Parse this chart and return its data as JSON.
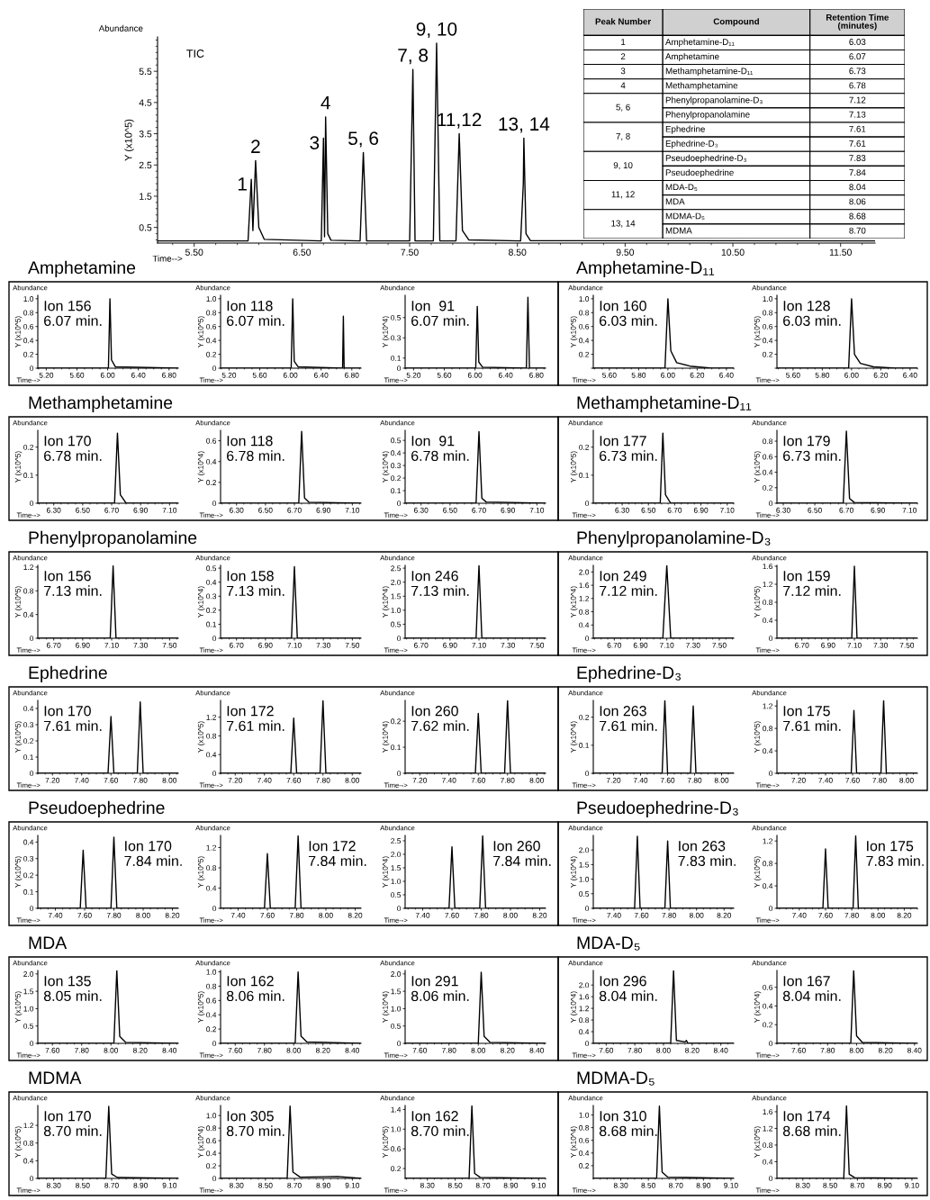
{
  "chart_data": [
    {
      "type": "line",
      "title": "TIC",
      "ylabel": "Y (x10^5)",
      "annotations": [
        "Abundance",
        "Time-->",
        {
          "text": "1",
          "x": 6.03,
          "y": 2.04
        },
        {
          "text": "2",
          "x": 6.07,
          "y": 2.64
        },
        {
          "text": "3",
          "x": 6.7,
          "y": 3.36
        },
        {
          "text": "4",
          "x": 6.72,
          "y": 4.04
        },
        {
          "text": "5, 6",
          "x": 7.07,
          "y": 2.9
        },
        {
          "text": "7, 8",
          "x": 7.53,
          "y": 5.56
        },
        {
          "text": "9, 10",
          "x": 7.75,
          "y": 6.4
        },
        {
          "text": "11,12",
          "x": 7.96,
          "y": 3.5
        },
        {
          "text": "13, 14",
          "x": 8.56,
          "y": 3.36
        }
      ],
      "xlim": [
        5.16,
        11.82
      ],
      "xticks": [
        {
          "value": 5.5,
          "label": "5.50"
        },
        {
          "value": 6.5,
          "label": "6.50"
        },
        {
          "value": 7.5,
          "label": "7.50"
        },
        {
          "value": 8.5,
          "label": "8.50"
        },
        {
          "value": 9.5,
          "label": "9.50"
        },
        {
          "value": 10.5,
          "label": "10.50"
        },
        {
          "value": 11.5,
          "label": "11.50"
        }
      ],
      "ylim": [
        0,
        6.6
      ],
      "yticks": [
        0.5,
        1.5,
        2.5,
        3.5,
        4.5,
        5.5
      ],
      "x": [
        5.16,
        6.0,
        6.03,
        6.045,
        6.07,
        6.1,
        6.15,
        6.68,
        6.7,
        6.71,
        6.72,
        6.74,
        6.77,
        7.04,
        7.07,
        7.1,
        7.5,
        7.53,
        7.55,
        7.72,
        7.75,
        7.78,
        7.93,
        7.96,
        7.99,
        8.05,
        8.53,
        8.555,
        8.56,
        8.58,
        8.62,
        11.82
      ],
      "values": [
        0.07,
        0.07,
        2.04,
        0.4,
        2.64,
        0.5,
        0.12,
        0.07,
        3.36,
        0.2,
        4.04,
        0.3,
        0.09,
        0.07,
        2.9,
        0.07,
        0.07,
        5.56,
        0.07,
        0.07,
        6.4,
        0.07,
        0.07,
        3.5,
        0.4,
        0.1,
        0.07,
        1.9,
        3.36,
        0.3,
        0.08,
        0.07
      ]
    },
    {
      "type": "other",
      "categories": [
        "Peak Number",
        "Compound",
        "Retention Time\n(minutes)"
      ],
      "cell_labels": [
        [
          "1",
          "Amphetamine-D₁₁",
          "6.03"
        ],
        [
          "2",
          "Amphetamine",
          "6.07"
        ],
        [
          "3",
          "Methamphetamine-D₁₁",
          "6.73"
        ],
        [
          "4",
          "Methamphetamine",
          "6.78"
        ],
        [
          "5, 6",
          "Phenylpropanolamine-D₃",
          "7.12"
        ],
        [
          null,
          "Phenylpropanolamine",
          "7.13"
        ],
        [
          "7, 8",
          "Ephedrine",
          "7.61"
        ],
        [
          null,
          "Ephedrine-D₃",
          "7.61"
        ],
        [
          "9, 10",
          "Pseudoephedrine-D₃",
          "7.83"
        ],
        [
          null,
          "Pseudoephedrine",
          "7.84"
        ],
        [
          "11, 12",
          "MDA-D₅",
          "8.04"
        ],
        [
          null,
          "MDA",
          "8.06"
        ],
        [
          "13, 14",
          "MDMA-D₅",
          "8.68"
        ],
        [
          null,
          "MDMA",
          "8.70"
        ]
      ]
    },
    {
      "type": "line",
      "subtitle": "Amphetamine",
      "ylabel": "Y (x10^5)",
      "annotations": [
        "Abundance",
        "Time-->",
        "Ion 156\n6.07 min."
      ],
      "xlim": [
        5.09,
        6.92
      ],
      "xticks": [
        {
          "value": 5.2,
          "label": "5.20"
        },
        {
          "value": 5.6,
          "label": "5.60"
        },
        {
          "value": 6,
          "label": "6.00"
        },
        {
          "value": 6.4,
          "label": "6.40"
        },
        {
          "value": 6.8,
          "label": "6.80"
        }
      ],
      "ylim": [
        0,
        1.05
      ],
      "yticks": [
        0,
        0.2,
        0.4,
        0.6,
        0.8,
        {
          "value": 1,
          "label": "1.0"
        }
      ],
      "x": [
        5.09,
        6.01,
        6.03,
        6.05,
        6.1,
        6.92
      ],
      "values": [
        0,
        0,
        1.0,
        0.12,
        0.02,
        0
      ]
    },
    {
      "type": "line",
      "ylabel": "Y (x10^5)",
      "annotations": [
        "Abundance",
        "Time-->",
        "Ion 118\n6.07 min."
      ],
      "xlim": [
        5.09,
        6.92
      ],
      "xticks": [
        {
          "value": 5.2,
          "label": "5.20"
        },
        {
          "value": 5.6,
          "label": "5.60"
        },
        {
          "value": 6,
          "label": "6.00"
        },
        {
          "value": 6.4,
          "label": "6.40"
        },
        {
          "value": 6.8,
          "label": "6.80"
        }
      ],
      "ylim": [
        0,
        1.05
      ],
      "yticks": [
        0,
        0.2,
        0.4,
        0.6,
        0.8,
        {
          "value": 1,
          "label": "1.0"
        }
      ],
      "x": [
        5.09,
        6.01,
        6.03,
        6.05,
        6.1,
        6.68,
        6.69,
        6.7,
        6.92
      ],
      "values": [
        0,
        0,
        1.0,
        0.1,
        0.02,
        0,
        0.75,
        0,
        0
      ]
    },
    {
      "type": "line",
      "ylabel": "Y (x10^4)",
      "annotations": [
        "Abundance",
        "Time-->",
        "Ion  91\n6.07 min."
      ],
      "xlim": [
        5.09,
        6.92
      ],
      "xticks": [
        {
          "value": 5.2,
          "label": "5.20"
        },
        {
          "value": 5.6,
          "label": "5.60"
        },
        {
          "value": 6,
          "label": "6.00"
        },
        {
          "value": 6.4,
          "label": "6.40"
        },
        {
          "value": 6.8,
          "label": "6.80"
        }
      ],
      "ylim": [
        0,
        0.72
      ],
      "yticks": [
        0,
        0.1,
        0.3,
        0.5
      ],
      "x": [
        5.09,
        6.01,
        6.03,
        6.05,
        6.1,
        6.67,
        6.69,
        6.71,
        6.92
      ],
      "values": [
        0,
        0,
        0.61,
        0.06,
        0.01,
        0,
        0.7,
        0,
        0
      ]
    },
    {
      "type": "line",
      "subtitle": "Amphetamine-D₁₁",
      "ylabel": "Y (x10^5)",
      "annotations": [
        "Abundance",
        "Time-->",
        "Ion 160\n6.03 min."
      ],
      "xlim": [
        5.49,
        6.45
      ],
      "xticks": [
        {
          "value": 5.6,
          "label": "5.60"
        },
        {
          "value": 5.8,
          "label": "5.80"
        },
        {
          "value": 6,
          "label": "6.00"
        },
        {
          "value": 6.2,
          "label": "6.20"
        },
        {
          "value": 6.4,
          "label": "6.40"
        }
      ],
      "ylim": [
        0,
        1.05
      ],
      "yticks": [
        {
          "value": 0,
          "label": null
        },
        0.2,
        0.4,
        0.6,
        0.8,
        {
          "value": 1,
          "label": "1.0"
        }
      ],
      "x": [
        5.49,
        5.98,
        6.0,
        6.02,
        6.06,
        6.15,
        6.3,
        6.45
      ],
      "values": [
        0,
        0,
        1.0,
        0.25,
        0.08,
        0.03,
        0,
        0
      ]
    },
    {
      "type": "line",
      "ylabel": "Y (x10^5)",
      "annotations": [
        "Abundance",
        "Time-->",
        "Ion 128\n6.03 min."
      ],
      "xlim": [
        5.49,
        6.45
      ],
      "xticks": [
        {
          "value": 5.6,
          "label": "5.60"
        },
        {
          "value": 5.8,
          "label": "5.80"
        },
        {
          "value": 6,
          "label": "6.00"
        },
        {
          "value": 6.2,
          "label": "6.20"
        },
        {
          "value": 6.4,
          "label": "6.40"
        }
      ],
      "ylim": [
        0,
        1.05
      ],
      "yticks": [
        {
          "value": 0,
          "label": null
        },
        0.2,
        0.4,
        0.6,
        0.8,
        {
          "value": 1,
          "label": "1.0"
        }
      ],
      "x": [
        5.49,
        5.98,
        6.0,
        6.02,
        6.06,
        6.15,
        6.3,
        6.45
      ],
      "values": [
        0,
        0,
        1.0,
        0.2,
        0.07,
        0.02,
        0,
        0
      ]
    },
    {
      "type": "line",
      "subtitle": "Methamphetamine",
      "ylabel": "Y (x10^5)",
      "annotations": [
        "Abundance",
        "Time-->",
        "Ion 170\n6.78 min."
      ],
      "xlim": [
        6.19,
        7.16
      ],
      "xticks": [
        {
          "value": 6.3,
          "label": "6.30"
        },
        {
          "value": 6.5,
          "label": "6.50"
        },
        {
          "value": 6.7,
          "label": "6.70"
        },
        {
          "value": 6.9,
          "label": "6.90"
        },
        {
          "value": 7.1,
          "label": "7.10"
        }
      ],
      "ylim": [
        0,
        0.26
      ],
      "yticks": [
        0,
        0.1,
        0.2
      ],
      "x": [
        6.19,
        6.72,
        6.74,
        6.76,
        6.8,
        7.16
      ],
      "values": [
        0,
        0,
        0.25,
        0.03,
        0,
        0
      ]
    },
    {
      "type": "line",
      "ylabel": "Y (x10^4)",
      "annotations": [
        "Abundance",
        "Time-->",
        "Ion 118\n6.78 min."
      ],
      "xlim": [
        6.19,
        7.16
      ],
      "xticks": [
        {
          "value": 6.3,
          "label": "6.30"
        },
        {
          "value": 6.5,
          "label": "6.50"
        },
        {
          "value": 6.7,
          "label": "6.70"
        },
        {
          "value": 6.9,
          "label": "6.90"
        },
        {
          "value": 7.1,
          "label": "7.10"
        }
      ],
      "ylim": [
        0,
        0.7
      ],
      "yticks": [
        0,
        0.2,
        0.4,
        0.6
      ],
      "x": [
        6.19,
        6.73,
        6.75,
        6.77,
        6.8,
        7.16
      ],
      "values": [
        0,
        0,
        0.69,
        0.05,
        0.01,
        0
      ]
    },
    {
      "type": "line",
      "ylabel": "Y (x10^4)",
      "annotations": [
        "Abundance",
        "Time-->",
        "Ion  91\n6.78 min."
      ],
      "xlim": [
        6.19,
        7.16
      ],
      "xticks": [
        {
          "value": 6.3,
          "label": "6.30"
        },
        {
          "value": 6.5,
          "label": "6.50"
        },
        {
          "value": 6.7,
          "label": "6.70"
        },
        {
          "value": 6.9,
          "label": "6.90"
        },
        {
          "value": 7.1,
          "label": "7.10"
        }
      ],
      "ylim": [
        0,
        0.58
      ],
      "yticks": [
        0,
        0.1,
        0.2,
        0.3,
        0.4,
        0.5
      ],
      "x": [
        6.19,
        6.68,
        6.7,
        6.72,
        6.75,
        7.16
      ],
      "values": [
        0,
        0,
        0.57,
        0.04,
        0.01,
        0
      ]
    },
    {
      "type": "line",
      "subtitle": "Methamphetamine-D₁₁",
      "ylabel": "Y (x10^5)",
      "annotations": [
        "Abundance",
        "Time-->",
        "Ion 177\n6.73 min."
      ],
      "xlim": [
        6.08,
        7.15
      ],
      "xticks": [
        {
          "value": 6.3,
          "label": "6.30"
        },
        {
          "value": 6.5,
          "label": "6.50"
        },
        {
          "value": 6.7,
          "label": "6.70"
        },
        {
          "value": 6.9,
          "label": "6.90"
        },
        {
          "value": 7.1,
          "label": "7.10"
        }
      ],
      "ylim": [
        0,
        0.26
      ],
      "yticks": [
        0,
        0.1,
        0.2
      ],
      "x": [
        6.08,
        6.59,
        6.61,
        6.63,
        6.67,
        7.15
      ],
      "values": [
        0,
        0,
        0.25,
        0.03,
        0,
        0
      ]
    },
    {
      "type": "line",
      "ylabel": "Y (x10^5)",
      "annotations": [
        "Abundance",
        "Time-->",
        "Ion 179\n6.73 min."
      ],
      "xlim": [
        6.26,
        7.15
      ],
      "xticks": [
        {
          "value": 6.3,
          "label": "6.30"
        },
        {
          "value": 6.5,
          "label": "6.50"
        },
        {
          "value": 6.7,
          "label": "6.70"
        },
        {
          "value": 6.9,
          "label": "6.90"
        },
        {
          "value": 7.1,
          "label": "7.10"
        }
      ],
      "ylim": [
        0,
        0.94
      ],
      "yticks": [
        0,
        0.2,
        0.4,
        0.6,
        0.8
      ],
      "x": [
        6.26,
        6.68,
        6.7,
        6.72,
        6.75,
        7.15
      ],
      "values": [
        0,
        0,
        0.93,
        0.06,
        0.01,
        0
      ]
    },
    {
      "type": "line",
      "subtitle": "Phenylpropanolamine",
      "ylabel": "Y (x10^5)",
      "annotations": [
        "Abundance",
        "Time-->",
        "Ion 156\n7.13 min."
      ],
      "xlim": [
        6.59,
        7.56
      ],
      "xticks": [
        {
          "value": 6.7,
          "label": "6.70"
        },
        {
          "value": 6.9,
          "label": "6.90"
        },
        {
          "value": 7.1,
          "label": "7.10"
        },
        {
          "value": 7.3,
          "label": "7.30"
        },
        {
          "value": 7.5,
          "label": "7.50"
        }
      ],
      "ylim": [
        0,
        1.23
      ],
      "yticks": [
        0,
        0.4,
        0.8,
        1.2
      ],
      "x": [
        6.59,
        7.09,
        7.11,
        7.13,
        7.56
      ],
      "values": [
        0,
        0,
        1.22,
        0,
        0
      ]
    },
    {
      "type": "line",
      "ylabel": "Y (x10^4)",
      "annotations": [
        "Abundance",
        "Time-->",
        "Ion 158\n7.13 min."
      ],
      "xlim": [
        6.59,
        7.56
      ],
      "xticks": [
        {
          "value": 6.7,
          "label": "6.70"
        },
        {
          "value": 6.9,
          "label": "6.90"
        },
        {
          "value": 7.1,
          "label": "7.10"
        },
        {
          "value": 7.3,
          "label": "7.30"
        },
        {
          "value": 7.5,
          "label": "7.50"
        }
      ],
      "ylim": [
        0,
        0.52
      ],
      "yticks": [
        0,
        0.1,
        0.2,
        0.3,
        0.4,
        0.5
      ],
      "x": [
        6.59,
        7.08,
        7.1,
        7.12,
        7.56
      ],
      "values": [
        0,
        0,
        0.51,
        0,
        0
      ]
    },
    {
      "type": "line",
      "ylabel": "Y (x10^4)",
      "annotations": [
        "Abundance",
        "Time-->",
        "Ion 246\n7.13 min."
      ],
      "xlim": [
        6.59,
        7.56
      ],
      "xticks": [
        {
          "value": 6.7,
          "label": "6.70"
        },
        {
          "value": 6.9,
          "label": "6.90"
        },
        {
          "value": 7.1,
          "label": "7.10"
        },
        {
          "value": 7.3,
          "label": "7.30"
        },
        {
          "value": 7.5,
          "label": "7.50"
        }
      ],
      "ylim": [
        0,
        2.6
      ],
      "yticks": [
        0,
        0.5,
        {
          "value": 1,
          "label": "1.0"
        },
        1.5,
        {
          "value": 2,
          "label": "2.0"
        },
        2.5
      ],
      "x": [
        6.59,
        7.08,
        7.1,
        7.12,
        7.56
      ],
      "values": [
        0,
        0,
        2.6,
        0,
        0
      ]
    },
    {
      "type": "line",
      "subtitle": "Phenylpropanolamine-D₃",
      "ylabel": "Y (x10^4)",
      "annotations": [
        "Abundance",
        "Time-->",
        "Ion 249\n7.12 min."
      ],
      "xlim": [
        6.54,
        7.61
      ],
      "xticks": [
        {
          "value": 6.7,
          "label": "6.70"
        },
        {
          "value": 6.9,
          "label": "6.90"
        },
        {
          "value": 7.1,
          "label": "7.10"
        },
        {
          "value": 7.3,
          "label": "7.30"
        },
        {
          "value": 7.5,
          "label": "7.50"
        }
      ],
      "ylim": [
        0,
        2.2
      ],
      "yticks": [
        0,
        0.4,
        0.8,
        1.2,
        1.6,
        {
          "value": 2,
          "label": "2.0"
        }
      ],
      "x": [
        6.54,
        7.07,
        7.1,
        7.13,
        7.61
      ],
      "values": [
        0,
        0,
        2.2,
        0,
        0
      ]
    },
    {
      "type": "line",
      "ylabel": "Y (x10^5)",
      "annotations": [
        "Abundance",
        "Time-->",
        "Ion 159\n7.12 min."
      ],
      "xlim": [
        6.51,
        7.58
      ],
      "xticks": [
        {
          "value": 6.7,
          "label": "6.70"
        },
        {
          "value": 6.9,
          "label": "6.90"
        },
        {
          "value": 7.1,
          "label": "7.10"
        },
        {
          "value": 7.3,
          "label": "7.30"
        },
        {
          "value": 7.5,
          "label": "7.50"
        }
      ],
      "ylim": [
        0,
        1.62
      ],
      "yticks": [
        0,
        0.4,
        0.8,
        1.2,
        1.6
      ],
      "x": [
        6.51,
        7.08,
        7.1,
        7.12,
        7.58
      ],
      "values": [
        0,
        0,
        1.6,
        0,
        0
      ]
    },
    {
      "type": "line",
      "subtitle": "Ephedrine",
      "ylabel": "Y (x10^5)",
      "annotations": [
        "Abundance",
        "Time-->",
        "Ion 170\n7.61 min."
      ],
      "xlim": [
        7.1,
        8.06
      ],
      "xticks": [
        {
          "value": 7.2,
          "label": "7.20"
        },
        {
          "value": 7.4,
          "label": "7.40"
        },
        {
          "value": 7.6,
          "label": "7.60"
        },
        {
          "value": 7.8,
          "label": "7.80"
        },
        {
          "value": 8,
          "label": "8.00"
        }
      ],
      "ylim": [
        0,
        0.45
      ],
      "yticks": [
        0,
        0.1,
        0.2,
        0.3,
        0.4
      ],
      "x": [
        7.1,
        7.58,
        7.6,
        7.62,
        7.78,
        7.8,
        7.82,
        8.06
      ],
      "values": [
        0,
        0,
        0.35,
        0,
        0,
        0.44,
        0,
        0
      ]
    },
    {
      "type": "line",
      "ylabel": "Y (x10^5)",
      "annotations": [
        "Abundance",
        "Time-->",
        "Ion 172\n7.61 min."
      ],
      "xlim": [
        7.1,
        8.06
      ],
      "xticks": [
        {
          "value": 7.2,
          "label": "7.20"
        },
        {
          "value": 7.4,
          "label": "7.40"
        },
        {
          "value": 7.6,
          "label": "7.60"
        },
        {
          "value": 7.8,
          "label": "7.80"
        },
        {
          "value": 8,
          "label": "8.00"
        }
      ],
      "ylim": [
        0,
        1.56
      ],
      "yticks": [
        0,
        0.4,
        0.8,
        1.2
      ],
      "x": [
        7.1,
        7.58,
        7.6,
        7.62,
        7.78,
        7.8,
        7.82,
        8.06
      ],
      "values": [
        0,
        0,
        1.18,
        0,
        0,
        1.55,
        0,
        0
      ]
    },
    {
      "type": "line",
      "ylabel": "Y (x10^4)",
      "annotations": [
        "Abundance",
        "Time-->",
        "Ion 260\n7.62 min."
      ],
      "xlim": [
        7.1,
        8.06
      ],
      "xticks": [
        {
          "value": 7.2,
          "label": "7.20"
        },
        {
          "value": 7.4,
          "label": "7.40"
        },
        {
          "value": 7.6,
          "label": "7.60"
        },
        {
          "value": 7.8,
          "label": "7.80"
        },
        {
          "value": 8,
          "label": "8.00"
        }
      ],
      "ylim": [
        0,
        0.28
      ],
      "yticks": [
        0,
        0.1,
        0.2
      ],
      "x": [
        7.1,
        7.58,
        7.6,
        7.62,
        7.78,
        7.8,
        7.82,
        8.06
      ],
      "values": [
        0,
        0,
        0.23,
        0,
        0,
        0.28,
        0,
        0
      ]
    },
    {
      "type": "line",
      "subtitle": "Ephedrine-D₃",
      "ylabel": "Y (x10^4)",
      "annotations": [
        "Abundance",
        "Time-->",
        "Ion 263\n7.61 min."
      ],
      "xlim": [
        7.05,
        8.09
      ],
      "xticks": [
        {
          "value": 7.2,
          "label": "7.20"
        },
        {
          "value": 7.4,
          "label": "7.40"
        },
        {
          "value": 7.6,
          "label": "7.60"
        },
        {
          "value": 7.8,
          "label": "7.80"
        },
        {
          "value": 8,
          "label": "8.00"
        }
      ],
      "ylim": [
        0,
        0.26
      ],
      "yticks": [
        0,
        0.1,
        0.2
      ],
      "x": [
        7.05,
        7.56,
        7.58,
        7.6,
        7.77,
        7.79,
        7.81,
        8.09
      ],
      "values": [
        0,
        0,
        0.26,
        0,
        0,
        0.24,
        0,
        0
      ]
    },
    {
      "type": "line",
      "ylabel": "Y (x10^5)",
      "annotations": [
        "Abundance",
        "Time-->",
        "Ion 175\n7.61 min."
      ],
      "xlim": [
        7.04,
        8.08
      ],
      "xticks": [
        {
          "value": 7.2,
          "label": "7.20"
        },
        {
          "value": 7.4,
          "label": "7.40"
        },
        {
          "value": 7.6,
          "label": "7.60"
        },
        {
          "value": 7.8,
          "label": "7.80"
        },
        {
          "value": 8,
          "label": "8.00"
        }
      ],
      "ylim": [
        0,
        1.3
      ],
      "yticks": [
        0,
        0.4,
        0.8,
        1.2
      ],
      "x": [
        7.04,
        7.59,
        7.61,
        7.63,
        7.81,
        7.83,
        7.85,
        8.08
      ],
      "values": [
        0,
        0,
        1.12,
        0,
        0,
        1.3,
        0,
        0
      ]
    },
    {
      "type": "line",
      "subtitle": "Pseudoephedrine",
      "ylabel": "Y (x10^5)",
      "annotations": [
        "Abundance",
        "Time-->",
        "Ion 170\n7.84 min."
      ],
      "xlim": [
        7.28,
        8.24
      ],
      "xticks": [
        {
          "value": 7.4,
          "label": "7.40"
        },
        {
          "value": 7.6,
          "label": "7.60"
        },
        {
          "value": 7.8,
          "label": "7.80"
        },
        {
          "value": 8,
          "label": "8.00"
        },
        {
          "value": 8.2,
          "label": "8.20"
        }
      ],
      "ylim": [
        0,
        0.44
      ],
      "yticks": [
        0,
        0.1,
        0.2,
        0.3,
        0.4
      ],
      "x": [
        7.28,
        7.57,
        7.59,
        7.61,
        7.78,
        7.8,
        7.82,
        8.24
      ],
      "values": [
        0,
        0,
        0.35,
        0,
        0,
        0.43,
        0,
        0
      ]
    },
    {
      "type": "line",
      "ylabel": "Y (x10^5)",
      "annotations": [
        "Abundance",
        "Time-->",
        "Ion 172\n7.84 min."
      ],
      "xlim": [
        7.28,
        8.24
      ],
      "xticks": [
        {
          "value": 7.4,
          "label": "7.40"
        },
        {
          "value": 7.6,
          "label": "7.60"
        },
        {
          "value": 7.8,
          "label": "7.80"
        },
        {
          "value": 8,
          "label": "8.00"
        },
        {
          "value": 8.2,
          "label": "8.20"
        }
      ],
      "ylim": [
        0,
        1.44
      ],
      "yticks": [
        0,
        0.4,
        0.8,
        1.2
      ],
      "x": [
        7.28,
        7.58,
        7.6,
        7.62,
        7.79,
        7.81,
        7.83,
        8.24
      ],
      "values": [
        0,
        0,
        1.08,
        0,
        0,
        1.43,
        0,
        0
      ]
    },
    {
      "type": "line",
      "ylabel": "Y (x10^4)",
      "annotations": [
        "Abundance",
        "Time-->",
        "Ion 260\n7.84 min."
      ],
      "xlim": [
        7.28,
        8.24
      ],
      "xticks": [
        {
          "value": 7.4,
          "label": "7.40"
        },
        {
          "value": 7.6,
          "label": "7.60"
        },
        {
          "value": 7.8,
          "label": "7.80"
        },
        {
          "value": 8,
          "label": "8.00"
        },
        {
          "value": 8.2,
          "label": "8.20"
        }
      ],
      "ylim": [
        0,
        2.7
      ],
      "yticks": [
        0,
        0.5,
        {
          "value": 1,
          "label": "1.0"
        },
        1.5,
        {
          "value": 2,
          "label": "2.0"
        },
        2.5
      ],
      "x": [
        7.28,
        7.58,
        7.6,
        7.62,
        7.79,
        7.81,
        7.83,
        8.24
      ],
      "values": [
        0,
        0,
        2.28,
        0,
        0,
        2.68,
        0,
        0
      ]
    },
    {
      "type": "line",
      "subtitle": "Pseudoephedrine-D₃",
      "ylabel": "Y (x10^4)",
      "annotations": [
        "Abundance",
        "Time-->",
        "Ion 263\n7.83 min."
      ],
      "xlim": [
        7.25,
        8.27
      ],
      "xticks": [
        {
          "value": 7.4,
          "label": "7.40"
        },
        {
          "value": 7.6,
          "label": "7.60"
        },
        {
          "value": 7.8,
          "label": "7.80"
        },
        {
          "value": 8,
          "label": "8.00"
        },
        {
          "value": 8.2,
          "label": "8.20"
        }
      ],
      "ylim": [
        0,
        2.5
      ],
      "yticks": [
        0,
        0.5,
        {
          "value": 1,
          "label": "1.0"
        },
        1.5,
        {
          "value": 2,
          "label": "2.0"
        }
      ],
      "x": [
        7.25,
        7.55,
        7.57,
        7.59,
        7.77,
        7.79,
        7.81,
        8.27
      ],
      "values": [
        0,
        0,
        2.47,
        0,
        0,
        2.31,
        0,
        0
      ]
    },
    {
      "type": "line",
      "ylabel": "Y (x10^5)",
      "annotations": [
        "Abundance",
        "Time-->",
        "Ion 175\n7.83 min."
      ],
      "xlim": [
        7.23,
        8.3
      ],
      "xticks": [
        {
          "value": 7.4,
          "label": "7.40"
        },
        {
          "value": 7.6,
          "label": "7.60"
        },
        {
          "value": 7.8,
          "label": "7.80"
        },
        {
          "value": 8,
          "label": "8.00"
        },
        {
          "value": 8.2,
          "label": "8.20"
        }
      ],
      "ylim": [
        0,
        1.3
      ],
      "yticks": [
        0,
        0.4,
        0.8,
        1.2
      ],
      "x": [
        7.23,
        7.58,
        7.6,
        7.62,
        7.81,
        7.83,
        7.85,
        8.3
      ],
      "values": [
        0,
        0,
        1.06,
        0,
        0,
        1.29,
        0,
        0
      ]
    },
    {
      "type": "line",
      "subtitle": "MDA",
      "ylabel": "Y (x10^5)",
      "annotations": [
        "Abundance",
        "Time-->",
        "Ion 135\n8.05 min."
      ],
      "xlim": [
        7.5,
        8.46
      ],
      "xticks": [
        {
          "value": 7.6,
          "label": "7.60"
        },
        {
          "value": 7.8,
          "label": "7.80"
        },
        {
          "value": 8,
          "label": "8.00"
        },
        {
          "value": 8.2,
          "label": "8.20"
        },
        {
          "value": 8.4,
          "label": "8.40"
        }
      ],
      "ylim": [
        0,
        2.1
      ],
      "yticks": [
        0,
        0.5,
        {
          "value": 1,
          "label": "1.0"
        },
        1.5,
        {
          "value": 2,
          "label": "2.0"
        }
      ],
      "x": [
        7.5,
        8.02,
        8.04,
        8.06,
        8.1,
        8.46
      ],
      "values": [
        0,
        0,
        2.1,
        0.2,
        0.03,
        0
      ]
    },
    {
      "type": "line",
      "ylabel": "Y (x10^5)",
      "annotations": [
        "Abundance",
        "Time-->",
        "Ion 162\n8.06 min."
      ],
      "xlim": [
        7.5,
        8.46
      ],
      "xticks": [
        {
          "value": 7.6,
          "label": "7.60"
        },
        {
          "value": 7.8,
          "label": "7.80"
        },
        {
          "value": 8,
          "label": "8.00"
        },
        {
          "value": 8.2,
          "label": "8.20"
        },
        {
          "value": 8.4,
          "label": "8.40"
        }
      ],
      "ylim": [
        0,
        1.02
      ],
      "yticks": [
        0,
        0.2,
        0.4,
        0.6,
        0.8,
        {
          "value": 1,
          "label": "1.0"
        }
      ],
      "x": [
        7.5,
        8.01,
        8.03,
        8.05,
        8.09,
        8.46
      ],
      "values": [
        0,
        0,
        1.0,
        0.1,
        0.02,
        0
      ]
    },
    {
      "type": "line",
      "ylabel": "Y (x10^4)",
      "annotations": [
        "Abundance",
        "Time-->",
        "Ion 291\n8.06 min."
      ],
      "xlim": [
        7.5,
        8.46
      ],
      "xticks": [
        {
          "value": 7.6,
          "label": "7.60"
        },
        {
          "value": 7.8,
          "label": "7.80"
        },
        {
          "value": 8,
          "label": "8.00"
        },
        {
          "value": 8.2,
          "label": "8.20"
        },
        {
          "value": 8.4,
          "label": "8.40"
        }
      ],
      "ylim": [
        0,
        2.1
      ],
      "yticks": [
        0,
        0.5,
        {
          "value": 1,
          "label": "1.0"
        },
        1.5,
        {
          "value": 2,
          "label": "2.0"
        }
      ],
      "x": [
        7.5,
        8.0,
        8.02,
        8.04,
        8.08,
        8.46
      ],
      "values": [
        0,
        0,
        2.05,
        0.2,
        0.03,
        0
      ]
    },
    {
      "type": "line",
      "subtitle": "MDA-D₅",
      "ylabel": "Y (x10^4)",
      "annotations": [
        "Abundance",
        "Time-->",
        "Ion 296\n8.04 min."
      ],
      "xlim": [
        7.51,
        8.49
      ],
      "xticks": [
        {
          "value": 7.6,
          "label": "7.60"
        },
        {
          "value": 7.8,
          "label": "7.80"
        },
        {
          "value": 8,
          "label": "8.00"
        },
        {
          "value": 8.2,
          "label": "8.20"
        },
        {
          "value": 8.4,
          "label": "8.40"
        }
      ],
      "ylim": [
        0,
        2.5
      ],
      "yticks": [
        0,
        0.4,
        0.8,
        1.2,
        1.6,
        {
          "value": 2,
          "label": "2.0"
        }
      ],
      "x": [
        7.51,
        8.05,
        8.07,
        8.09,
        8.15,
        8.16,
        8.17,
        8.49
      ],
      "values": [
        0,
        0,
        2.5,
        0.1,
        0.05,
        0.1,
        0,
        0
      ]
    },
    {
      "type": "line",
      "ylabel": "Y (x10^4)",
      "annotations": [
        "Abundance",
        "Time-->",
        "Ion 167\n8.04 min."
      ],
      "xlim": [
        7.45,
        8.42
      ],
      "xticks": [
        {
          "value": 7.6,
          "label": "7.60"
        },
        {
          "value": 7.8,
          "label": "7.80"
        },
        {
          "value": 8,
          "label": "8.00"
        },
        {
          "value": 8.2,
          "label": "8.20"
        },
        {
          "value": 8.4,
          "label": "8.40"
        }
      ],
      "ylim": [
        0,
        0.78
      ],
      "yticks": [
        0,
        0.2,
        0.4,
        0.6
      ],
      "x": [
        7.45,
        7.96,
        7.98,
        8.0,
        8.04,
        8.42
      ],
      "values": [
        0,
        0,
        0.78,
        0.08,
        0.01,
        0
      ]
    },
    {
      "type": "line",
      "subtitle": "MDMA",
      "ylabel": "Y (x10^5)",
      "annotations": [
        "Abundance",
        "Time-->",
        "Ion 170\n8.70 min."
      ],
      "xlim": [
        8.19,
        9.16
      ],
      "xticks": [
        {
          "value": 8.3,
          "label": "8.30"
        },
        {
          "value": 8.5,
          "label": "8.50"
        },
        {
          "value": 8.7,
          "label": "8.70"
        },
        {
          "value": 8.9,
          "label": "8.90"
        },
        {
          "value": 9.1,
          "label": "9.10"
        }
      ],
      "ylim": [
        0,
        1.65
      ],
      "yticks": [
        0,
        0.4,
        0.8,
        1.2
      ],
      "x": [
        8.19,
        8.66,
        8.68,
        8.7,
        8.74,
        9.16
      ],
      "values": [
        0,
        0,
        1.63,
        0.1,
        0.02,
        0
      ]
    },
    {
      "type": "line",
      "ylabel": "Y (x10^4)",
      "annotations": [
        "Abundance",
        "Time-->",
        "Ion 305\n8.70 min."
      ],
      "xlim": [
        8.19,
        9.16
      ],
      "xticks": [
        {
          "value": 8.3,
          "label": "8.30"
        },
        {
          "value": 8.5,
          "label": "8.50"
        },
        {
          "value": 8.7,
          "label": "8.70"
        },
        {
          "value": 8.9,
          "label": "8.90"
        },
        {
          "value": 9.1,
          "label": "9.10"
        }
      ],
      "ylim": [
        0,
        1.16
      ],
      "yticks": [
        0,
        0.2,
        0.4,
        0.6,
        0.8,
        {
          "value": 1,
          "label": "1.0"
        }
      ],
      "x": [
        8.19,
        8.65,
        8.67,
        8.69,
        8.74,
        9.0,
        9.16
      ],
      "values": [
        0,
        0,
        1.15,
        0.1,
        0.02,
        0.03,
        0
      ]
    },
    {
      "type": "line",
      "ylabel": "Y (x10^5)",
      "annotations": [
        "Abundance",
        "Time-->",
        "Ion 162\n8.70 min."
      ],
      "xlim": [
        8.14,
        9.15
      ],
      "xticks": [
        {
          "value": 8.3,
          "label": "8.30"
        },
        {
          "value": 8.5,
          "label": "8.50"
        },
        {
          "value": 8.7,
          "label": "8.70"
        },
        {
          "value": 8.9,
          "label": "8.90"
        },
        {
          "value": 9.1,
          "label": "9.10"
        }
      ],
      "ylim": [
        0,
        1.48
      ],
      "yticks": [
        0.2,
        0.6,
        {
          "value": 1,
          "label": "1.0"
        },
        1.4
      ],
      "x": [
        8.14,
        8.6,
        8.62,
        8.64,
        8.68,
        9.15
      ],
      "values": [
        0,
        0,
        1.47,
        0.1,
        0.02,
        0
      ]
    },
    {
      "type": "line",
      "subtitle": "MDMA-D₅",
      "ylabel": "Y (x10^4)",
      "annotations": [
        "Abundance",
        "Time-->",
        "Ion 310\n8.68 min."
      ],
      "xlim": [
        8.1,
        9.12
      ],
      "xticks": [
        {
          "value": 8.3,
          "label": "8.30"
        },
        {
          "value": 8.5,
          "label": "8.50"
        },
        {
          "value": 8.7,
          "label": "8.70"
        },
        {
          "value": 8.9,
          "label": "8.90"
        },
        {
          "value": 9.1,
          "label": "9.10"
        }
      ],
      "ylim": [
        0,
        1.15
      ],
      "yticks": [
        0.2,
        0.4,
        0.6,
        0.8,
        {
          "value": 1,
          "label": "1.0"
        }
      ],
      "x": [
        8.1,
        8.56,
        8.58,
        8.6,
        8.64,
        9.12
      ],
      "values": [
        0,
        0,
        1.14,
        0.1,
        0.02,
        0
      ]
    },
    {
      "type": "line",
      "ylabel": "Y (x10^5)",
      "annotations": [
        "Abundance",
        "Time-->",
        "Ion 174\n8.68 min."
      ],
      "xlim": [
        8.11,
        9.14
      ],
      "xticks": [
        {
          "value": 8.3,
          "label": "8.30"
        },
        {
          "value": 8.5,
          "label": "8.50"
        },
        {
          "value": 8.7,
          "label": "8.70"
        },
        {
          "value": 8.9,
          "label": "8.90"
        },
        {
          "value": 9.1,
          "label": "9.10"
        }
      ],
      "ylim": [
        0,
        1.75
      ],
      "yticks": [
        0,
        0.4,
        0.8,
        1.2,
        1.6
      ],
      "x": [
        8.11,
        8.6,
        8.62,
        8.64,
        8.68,
        9.14
      ],
      "values": [
        0,
        0,
        1.74,
        0.1,
        0.02,
        0
      ]
    }
  ]
}
